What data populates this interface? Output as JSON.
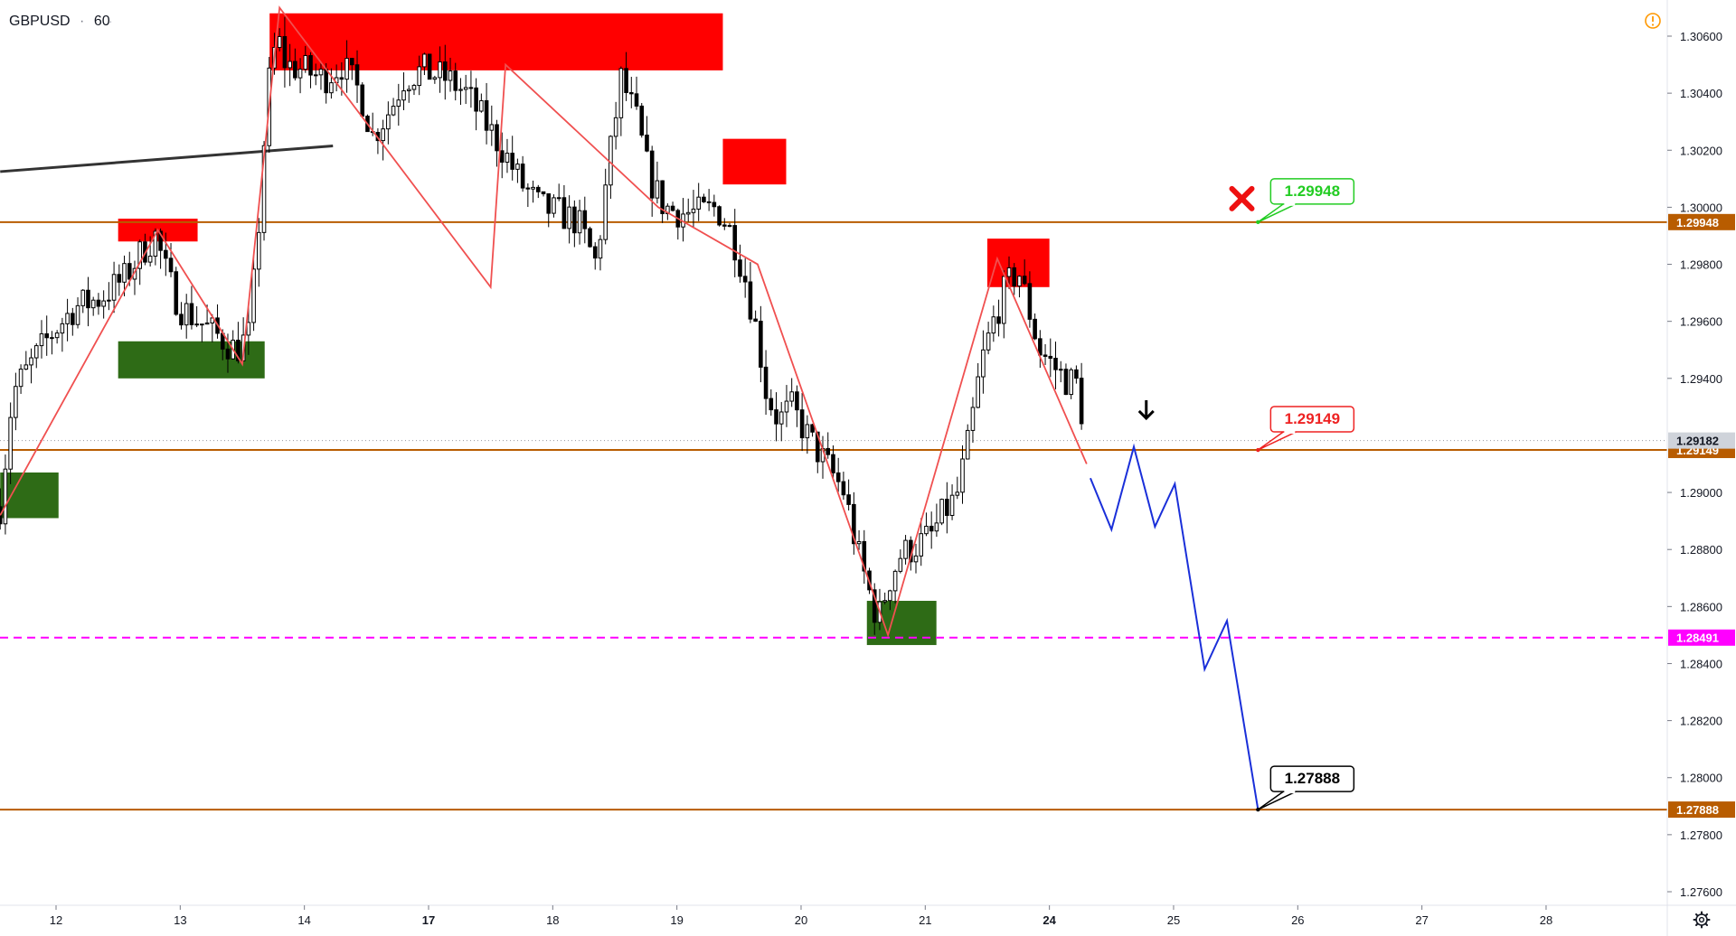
{
  "header": {
    "symbol": "GBPUSD",
    "separator": "·",
    "interval": "60"
  },
  "icons": {
    "alert": "warning-circle-icon",
    "settings": "gear-icon",
    "cancel_mark": "red-x-icon",
    "down_arrow": "down-arrow-icon"
  },
  "colors": {
    "background": "#ffffff",
    "candle": "#000000",
    "supply_zone": "#ff0000",
    "demand_zone": "#2e6b16",
    "level_line": "#b85c00",
    "zigzag": "#f05050",
    "projection": "#1a2fd9",
    "trendline": "#333333",
    "pivot_line": "#ff00ff",
    "current_price_tag": "#cfd3da"
  },
  "chart_data": {
    "type": "candlestick",
    "symbol": "GBPUSD",
    "interval": "60",
    "ylim": [
      1.2752,
      1.3076
    ],
    "y_ticks": [
      "1.30600",
      "1.30400",
      "1.30200",
      "1.30000",
      "1.29800",
      "1.29600",
      "1.29400",
      "1.29000",
      "1.28800",
      "1.28600",
      "1.28400",
      "1.28200",
      "1.28000",
      "1.27800",
      "1.27600"
    ],
    "x_ticks": [
      {
        "label": "12",
        "day": 0,
        "bold": false
      },
      {
        "label": "13",
        "day": 1,
        "bold": false
      },
      {
        "label": "14",
        "day": 2,
        "bold": false
      },
      {
        "label": "17",
        "day": 3,
        "bold": true
      },
      {
        "label": "18",
        "day": 4,
        "bold": false
      },
      {
        "label": "19",
        "day": 5,
        "bold": false
      },
      {
        "label": "20",
        "day": 6,
        "bold": false
      },
      {
        "label": "21",
        "day": 7,
        "bold": false
      },
      {
        "label": "24",
        "day": 8,
        "bold": true
      },
      {
        "label": "25",
        "day": 9,
        "bold": false
      },
      {
        "label": "26",
        "day": 10,
        "bold": false
      },
      {
        "label": "27",
        "day": 11,
        "bold": false
      },
      {
        "label": "28",
        "day": 12,
        "bold": false
      }
    ],
    "price_path": [
      [
        -0.45,
        1.2895
      ],
      [
        -0.35,
        1.2935
      ],
      [
        -0.2,
        1.2945
      ],
      [
        -0.05,
        1.2955
      ],
      [
        0.15,
        1.2965
      ],
      [
        0.35,
        1.2968
      ],
      [
        0.55,
        1.2975
      ],
      [
        0.7,
        1.2985
      ],
      [
        0.8,
        1.299
      ],
      [
        0.9,
        1.2975
      ],
      [
        1.0,
        1.2965
      ],
      [
        1.15,
        1.296
      ],
      [
        1.3,
        1.2955
      ],
      [
        1.45,
        1.295
      ],
      [
        1.55,
        1.2955
      ],
      [
        1.62,
        1.2985
      ],
      [
        1.7,
        1.304
      ],
      [
        1.78,
        1.306
      ],
      [
        1.85,
        1.305
      ],
      [
        2.0,
        1.3048
      ],
      [
        2.15,
        1.3045
      ],
      [
        2.3,
        1.305
      ],
      [
        2.45,
        1.304
      ],
      [
        2.55,
        1.3025
      ],
      [
        2.7,
        1.3035
      ],
      [
        2.8,
        1.3045
      ],
      [
        2.95,
        1.3048
      ],
      [
        3.15,
        1.3045
      ],
      [
        3.3,
        1.304
      ],
      [
        3.45,
        1.303
      ],
      [
        3.6,
        1.302
      ],
      [
        3.75,
        1.3008
      ],
      [
        3.9,
        1.3
      ],
      [
        4.05,
        1.2998
      ],
      [
        4.2,
        1.2995
      ],
      [
        4.35,
        1.298
      ],
      [
        4.45,
        1.3015
      ],
      [
        4.55,
        1.3045
      ],
      [
        4.68,
        1.303
      ],
      [
        4.78,
        1.301
      ],
      [
        4.9,
        1.3
      ],
      [
        5.05,
        1.2998
      ],
      [
        5.2,
        1.2998
      ],
      [
        5.32,
        1.3
      ],
      [
        5.45,
        1.299
      ],
      [
        5.55,
        1.2975
      ],
      [
        5.65,
        1.2955
      ],
      [
        5.72,
        1.2935
      ],
      [
        5.82,
        1.2925
      ],
      [
        5.92,
        1.293
      ],
      [
        6.05,
        1.292
      ],
      [
        6.2,
        1.291
      ],
      [
        6.35,
        1.29
      ],
      [
        6.45,
        1.288
      ],
      [
        6.55,
        1.2865
      ],
      [
        6.62,
        1.2855
      ],
      [
        6.7,
        1.2868
      ],
      [
        6.8,
        1.2878
      ],
      [
        6.95,
        1.2882
      ],
      [
        7.05,
        1.2885
      ],
      [
        7.15,
        1.2893
      ],
      [
        7.25,
        1.2898
      ],
      [
        7.35,
        1.2918
      ],
      [
        7.45,
        1.2945
      ],
      [
        7.55,
        1.296
      ],
      [
        7.65,
        1.2972
      ],
      [
        7.75,
        1.2978
      ],
      [
        7.83,
        1.2965
      ],
      [
        7.92,
        1.295
      ],
      [
        8.02,
        1.2945
      ],
      [
        8.12,
        1.294
      ],
      [
        8.22,
        1.2938
      ],
      [
        8.3,
        1.2918
      ]
    ],
    "zigzag": [
      [
        -0.45,
        1.2892
      ],
      [
        0.82,
        1.2992
      ],
      [
        1.5,
        1.2945
      ],
      [
        1.8,
        1.307
      ],
      [
        3.5,
        1.2972
      ],
      [
        3.62,
        1.305
      ],
      [
        4.85,
        1.3
      ],
      [
        5.65,
        1.298
      ],
      [
        6.7,
        1.285
      ],
      [
        7.58,
        1.2982
      ],
      [
        8.3,
        1.291
      ]
    ],
    "projection": [
      [
        8.33,
        1.2905
      ],
      [
        8.5,
        1.2887
      ],
      [
        8.68,
        1.2916
      ],
      [
        8.85,
        1.2888
      ],
      [
        9.01,
        1.2903
      ],
      [
        9.25,
        1.2838
      ],
      [
        9.43,
        1.2855
      ],
      [
        9.68,
        1.27888
      ]
    ],
    "trendline": [
      [
        -0.45,
        1.30125
      ],
      [
        2.23,
        1.30215
      ]
    ],
    "supply_zones": [
      {
        "x0": 1.72,
        "x1": 5.37,
        "y0": 1.3048,
        "y1": 1.3068
      },
      {
        "x0": 0.5,
        "x1": 1.14,
        "y0": 1.2988,
        "y1": 1.2996
      },
      {
        "x0": 5.37,
        "x1": 5.88,
        "y0": 1.3008,
        "y1": 1.3024
      },
      {
        "x0": 7.5,
        "x1": 8.0,
        "y0": 1.2972,
        "y1": 1.2989
      }
    ],
    "demand_zones": [
      {
        "x0": -0.45,
        "x1": 0.02,
        "y0": 1.2891,
        "y1": 1.2907
      },
      {
        "x0": 0.5,
        "x1": 1.68,
        "y0": 1.294,
        "y1": 1.2953
      },
      {
        "x0": 6.53,
        "x1": 7.09,
        "y0": 1.28465,
        "y1": 1.2862
      }
    ],
    "levels": [
      {
        "value": 1.29948,
        "label": "1.29948",
        "style": "solid",
        "tag": "level"
      },
      {
        "value": 1.29149,
        "label": "1.29149",
        "style": "solid",
        "tag": "level"
      },
      {
        "value": 1.27888,
        "label": "1.27888",
        "style": "solid",
        "tag": "level"
      },
      {
        "value": 1.28491,
        "label": "1.28491",
        "style": "dashed",
        "tag": "pivot"
      }
    ],
    "current_price": {
      "value": 1.29182,
      "label": "1.29182"
    },
    "callouts": [
      {
        "text": "1.29948",
        "anchor_day": 9.68,
        "anchor_price": 1.29948,
        "style": "green"
      },
      {
        "text": "1.29149",
        "anchor_day": 9.68,
        "anchor_price": 1.29149,
        "style": "red"
      },
      {
        "text": "1.27888",
        "anchor_day": 9.68,
        "anchor_price": 1.27888,
        "style": "black"
      }
    ],
    "annotations": [
      {
        "type": "x-mark",
        "day": 9.55,
        "price": 1.3003
      },
      {
        "type": "down-arrow",
        "day": 8.78,
        "price": 1.2926
      }
    ]
  }
}
